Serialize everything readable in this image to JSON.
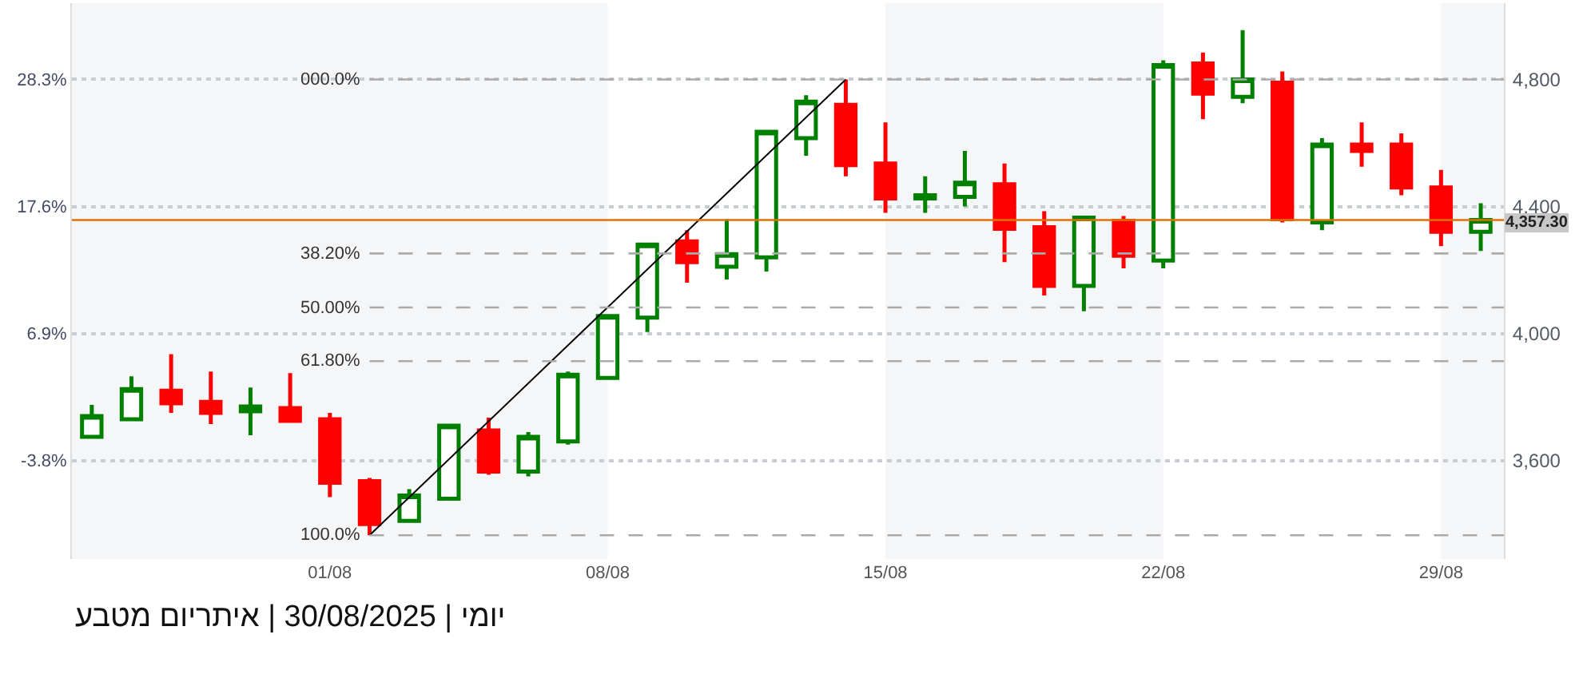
{
  "chart_data": {
    "type": "candlestick",
    "x": [
      "2025-07-26",
      "2025-07-27",
      "2025-07-28",
      "2025-07-29",
      "2025-07-30",
      "2025-07-31",
      "2025-08-01",
      "2025-08-02",
      "2025-08-03",
      "2025-08-04",
      "2025-08-05",
      "2025-08-06",
      "2025-08-07",
      "2025-08-08",
      "2025-08-09",
      "2025-08-10",
      "2025-08-11",
      "2025-08-12",
      "2025-08-13",
      "2025-08-14",
      "2025-08-15",
      "2025-08-16",
      "2025-08-17",
      "2025-08-18",
      "2025-08-19",
      "2025-08-20",
      "2025-08-21",
      "2025-08-22",
      "2025-08-23",
      "2025-08-24",
      "2025-08-25",
      "2025-08-26",
      "2025-08-27",
      "2025-08-28",
      "2025-08-29",
      "2025-08-30"
    ],
    "ohlc": [
      [
        3675,
        3775,
        3675,
        3740
      ],
      [
        3730,
        3865,
        3730,
        3825
      ],
      [
        3820,
        3935,
        3750,
        3780
      ],
      [
        3785,
        3880,
        3715,
        3750
      ],
      [
        3755,
        3830,
        3680,
        3770
      ],
      [
        3765,
        3875,
        3720,
        3725
      ],
      [
        3730,
        3750,
        3485,
        3530
      ],
      [
        3535,
        3545,
        3365,
        3400
      ],
      [
        3410,
        3510,
        3410,
        3490
      ],
      [
        3480,
        3715,
        3480,
        3710
      ],
      [
        3695,
        3735,
        3555,
        3565
      ],
      [
        3565,
        3690,
        3550,
        3675
      ],
      [
        3660,
        3880,
        3650,
        3870
      ],
      [
        3860,
        4055,
        3860,
        4055
      ],
      [
        4050,
        4280,
        4005,
        4280
      ],
      [
        4290,
        4325,
        4160,
        4225
      ],
      [
        4210,
        4360,
        4170,
        4250
      ],
      [
        4240,
        4635,
        4195,
        4635
      ],
      [
        4615,
        4750,
        4560,
        4730
      ],
      [
        4720,
        4800,
        4495,
        4530
      ],
      [
        4535,
        4665,
        4380,
        4425
      ],
      [
        4425,
        4495,
        4380,
        4435
      ],
      [
        4430,
        4575,
        4400,
        4475
      ],
      [
        4470,
        4535,
        4225,
        4330
      ],
      [
        4335,
        4385,
        4120,
        4150
      ],
      [
        4150,
        4365,
        4070,
        4365
      ],
      [
        4355,
        4370,
        4205,
        4245
      ],
      [
        4230,
        4860,
        4205,
        4845
      ],
      [
        4850,
        4885,
        4675,
        4755
      ],
      [
        4745,
        4955,
        4725,
        4800
      ],
      [
        4790,
        4825,
        4350,
        4360
      ],
      [
        4350,
        4615,
        4325,
        4595
      ],
      [
        4595,
        4665,
        4525,
        4575
      ],
      [
        4595,
        4630,
        4435,
        4460
      ],
      [
        4460,
        4515,
        4275,
        4320
      ],
      [
        4320,
        4410,
        4260,
        4357.3
      ]
    ],
    "colors": [
      "#008000",
      "#008000",
      "#ff0000",
      "#ff0000",
      "#008000",
      "#ff0000",
      "#ff0000",
      "#ff0000",
      "#008000",
      "#008000",
      "#ff0000",
      "#008000",
      "#008000",
      "#008000",
      "#008000",
      "#ff0000",
      "#008000",
      "#008000",
      "#008000",
      "#ff0000",
      "#ff0000",
      "#008000",
      "#008000",
      "#ff0000",
      "#ff0000",
      "#008000",
      "#ff0000",
      "#008000",
      "#ff0000",
      "#008000",
      "#ff0000",
      "#008000",
      "#ff0000",
      "#ff0000",
      "#ff0000",
      "#008000"
    ],
    "series": [
      {
        "type": "line",
        "x": [
          "2025-08-02",
          "2025-08-14"
        ],
        "values": [
          3365,
          4800
        ],
        "color": "#000000"
      }
    ],
    "xlim": [
      "2025-07-25T12:00",
      "2025-08-30T14:00"
    ],
    "xticks": [
      {
        "value": "2025-08-01",
        "label": "01/08"
      },
      {
        "value": "2025-08-08",
        "label": "08/08"
      },
      {
        "value": "2025-08-15",
        "label": "15/08"
      },
      {
        "value": "2025-08-22",
        "label": "22/08"
      },
      {
        "value": "2025-08-29",
        "label": "29/08"
      }
    ],
    "ylim": [
      3290,
      5040
    ],
    "yticks": [
      {
        "value": 3600,
        "label": "3,600"
      },
      {
        "value": 4000,
        "label": "4,000"
      },
      {
        "value": 4400,
        "label": "4,400"
      },
      {
        "value": 4800,
        "label": "4,800"
      }
    ],
    "y2lim": [
      -12.09,
      34.72
    ],
    "y2ticks": [
      {
        "value": -3.8,
        "label": "-3.8%"
      },
      {
        "value": 6.9,
        "label": "6.9%"
      },
      {
        "value": 17.6,
        "label": "17.6%"
      },
      {
        "value": 28.3,
        "label": "28.3%"
      }
    ],
    "ref_lines": [
      {
        "axis": "y",
        "value": 4800,
        "color": "#aaaaaa",
        "line_style": "dashed"
      },
      {
        "axis": "y",
        "value": 4252,
        "color": "#aaaaaa",
        "line_style": "dashed"
      },
      {
        "axis": "y",
        "value": 4082,
        "color": "#aaaaaa",
        "line_style": "dashed"
      },
      {
        "axis": "y",
        "value": 3913,
        "color": "#aaaaaa",
        "line_style": "dashed"
      },
      {
        "axis": "y",
        "value": 3365,
        "color": "#aaaaaa",
        "line_style": "dashed"
      },
      {
        "axis": "y",
        "value": 4357.3,
        "label": "4,357.30",
        "color": "#e07000",
        "line_style": "solid"
      }
    ],
    "bands": [
      {
        "axis": "x",
        "from": "2025-07-25T12:00",
        "to": "2025-08-08",
        "color": "#f5f6f8"
      },
      {
        "axis": "x",
        "from": "2025-08-15",
        "to": "2025-08-22",
        "color": "#f5f6f8"
      },
      {
        "axis": "x",
        "from": "2025-08-29",
        "to": "2025-08-30T14:00",
        "color": "#f5f6f8"
      }
    ],
    "grid": "y",
    "annotations": [
      {
        "text": "000.0%",
        "x": "2025-08-02",
        "y": 4800
      },
      {
        "text": "38.20%",
        "x": "2025-08-02",
        "y": 4252
      },
      {
        "text": "50.00%",
        "x": "2025-08-02",
        "y": 4082
      },
      {
        "text": "61.80%",
        "x": "2025-08-02",
        "y": 3913
      },
      {
        "text": "100.0%",
        "x": "2025-08-02",
        "y": 3365
      },
      "יומי | 30/08/2025 | איתריום מטבע"
    ]
  }
}
